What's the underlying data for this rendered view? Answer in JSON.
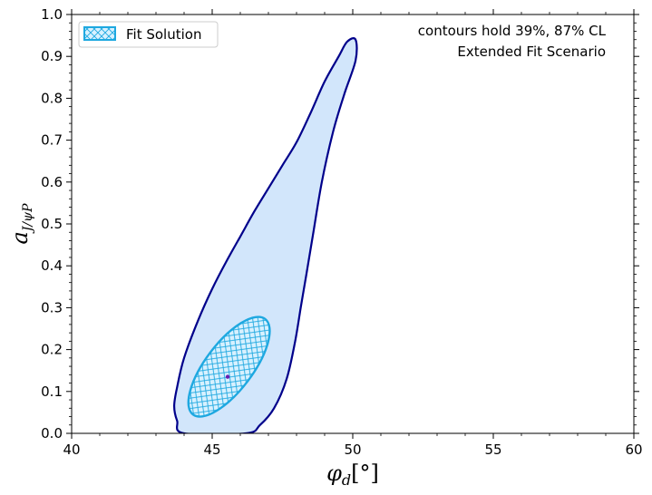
{
  "chart_data": {
    "type": "contour",
    "xlabel": "φd[°]",
    "ylabel": "aJ/ψP",
    "xlim": [
      40,
      60
    ],
    "ylim": [
      0,
      1.0
    ],
    "x_ticks": [
      40,
      45,
      50,
      55,
      60
    ],
    "y_ticks": [
      0.0,
      0.1,
      0.2,
      0.3,
      0.4,
      0.5,
      0.6,
      0.7,
      0.8,
      0.9,
      1.0
    ],
    "annotations": [
      "contours hold 39%, 87% CL",
      "Extended Fit Scenario"
    ],
    "legend": {
      "label": "Fit Solution",
      "position": "top-left"
    },
    "series": [
      {
        "name": "Fit Solution",
        "best_fit": [
          45.55,
          0.135
        ],
        "colors": {
          "inner_edge": "#1ea8e0",
          "inner_hatch": "#1ea8e0",
          "inner_fill": "#d8f1ff",
          "outer_edge": "#00008b",
          "outer_fill": "#d2e6fb",
          "marker": "#6a1fb0"
        },
        "contours": [
          {
            "level": "87%",
            "points": [
              [
                44.0,
                0.0
              ],
              [
                43.75,
                0.03
              ],
              [
                43.65,
                0.065
              ],
              [
                43.75,
                0.11
              ],
              [
                44.0,
                0.18
              ],
              [
                44.5,
                0.27
              ],
              [
                45.0,
                0.345
              ],
              [
                45.5,
                0.41
              ],
              [
                46.0,
                0.47
              ],
              [
                46.5,
                0.53
              ],
              [
                47.0,
                0.585
              ],
              [
                47.5,
                0.64
              ],
              [
                48.0,
                0.695
              ],
              [
                48.5,
                0.765
              ],
              [
                49.0,
                0.84
              ],
              [
                49.5,
                0.9
              ],
              [
                49.8,
                0.935
              ],
              [
                50.1,
                0.94
              ],
              [
                50.1,
                0.89
              ],
              [
                49.7,
                0.81
              ],
              [
                49.3,
                0.72
              ],
              [
                48.9,
                0.6
              ],
              [
                48.6,
                0.48
              ],
              [
                48.35,
                0.38
              ],
              [
                48.15,
                0.3
              ],
              [
                47.95,
                0.22
              ],
              [
                47.65,
                0.13
              ],
              [
                47.2,
                0.06
              ],
              [
                46.7,
                0.02
              ],
              [
                46.2,
                0.0
              ]
            ]
          },
          {
            "level": "39%",
            "ellipse": {
              "cx": 45.6,
              "cy": 0.159,
              "theta_deg": 53
            }
          }
        ]
      }
    ]
  }
}
